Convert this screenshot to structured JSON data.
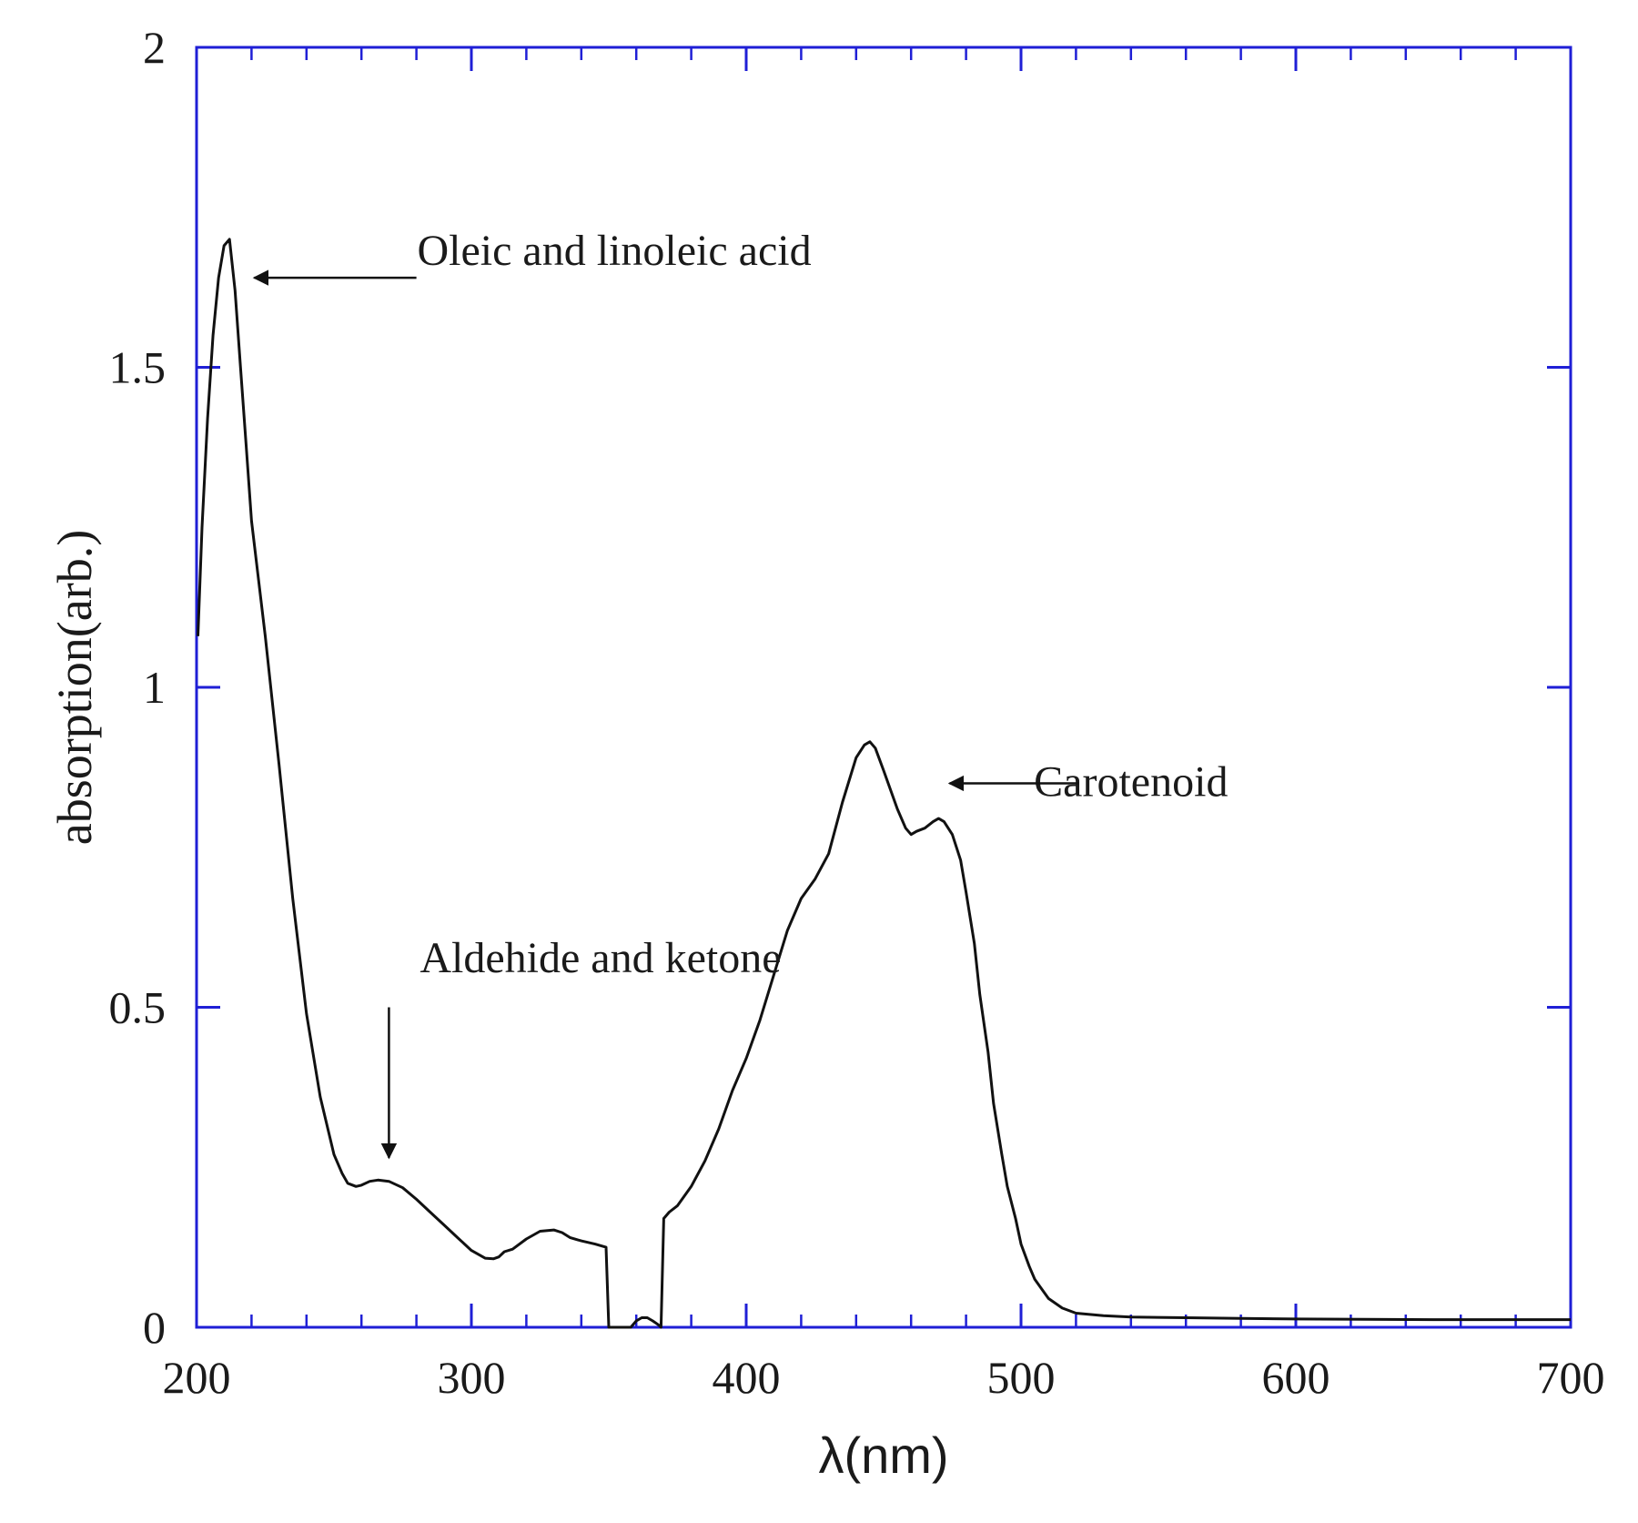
{
  "chart_data": {
    "type": "line",
    "xlabel": "λ(nm)",
    "ylabel": "absorption(arb.)",
    "xlim": [
      200,
      700
    ],
    "ylim": [
      0,
      2
    ],
    "x_ticks": [
      "200",
      "300",
      "400",
      "500",
      "600",
      "700"
    ],
    "y_ticks": [
      "0",
      "0.5",
      "1",
      "1.5",
      "2"
    ],
    "x_minor_step": 20,
    "frame_color": "#1f1fd6",
    "line_color": "#111111",
    "series": [
      {
        "x": [
          200.5,
          202,
          204,
          206,
          208,
          210,
          212,
          214,
          216,
          218,
          220,
          225,
          230,
          235,
          240,
          245,
          250,
          253,
          255,
          258,
          260,
          263,
          266,
          270,
          275,
          280,
          285,
          290,
          295,
          300,
          305,
          308,
          310,
          312,
          315,
          320,
          325,
          330,
          333,
          336,
          340,
          345,
          349,
          350,
          351,
          355,
          358,
          360,
          362,
          364,
          366,
          368,
          369,
          370,
          371,
          372,
          375,
          380,
          385,
          390,
          395,
          400,
          405,
          410,
          415,
          420,
          425,
          430,
          435,
          440,
          443,
          445,
          447,
          450,
          455,
          458,
          460,
          462,
          465,
          468,
          470,
          472,
          475,
          478,
          480,
          483,
          485,
          488,
          490,
          493,
          495,
          498,
          500,
          503,
          505,
          510,
          515,
          520,
          530,
          540,
          560,
          580,
          600,
          650,
          700
        ],
        "y": [
          1.08,
          1.25,
          1.42,
          1.55,
          1.64,
          1.69,
          1.7,
          1.62,
          1.5,
          1.38,
          1.26,
          1.08,
          0.88,
          0.67,
          0.49,
          0.36,
          0.27,
          0.24,
          0.225,
          0.22,
          0.222,
          0.228,
          0.23,
          0.228,
          0.218,
          0.2,
          0.18,
          0.16,
          0.14,
          0.12,
          0.108,
          0.107,
          0.11,
          0.118,
          0.122,
          0.138,
          0.15,
          0.152,
          0.148,
          0.14,
          0.135,
          0.13,
          0.125,
          0,
          0,
          0,
          0,
          0.01,
          0.015,
          0.015,
          0.01,
          0.004,
          0,
          0.17,
          0.175,
          0.18,
          0.19,
          0.22,
          0.26,
          0.31,
          0.37,
          0.42,
          0.48,
          0.55,
          0.62,
          0.67,
          0.7,
          0.74,
          0.82,
          0.89,
          0.91,
          0.915,
          0.905,
          0.87,
          0.81,
          0.78,
          0.77,
          0.775,
          0.78,
          0.79,
          0.795,
          0.79,
          0.77,
          0.73,
          0.68,
          0.6,
          0.52,
          0.43,
          0.35,
          0.27,
          0.22,
          0.17,
          0.13,
          0.095,
          0.075,
          0.045,
          0.03,
          0.022,
          0.018,
          0.016,
          0.015,
          0.014,
          0.013,
          0.012,
          0.012
        ]
      }
    ],
    "annotations": [
      {
        "text": "Oleic and linoleic acid",
        "x": 352,
        "y": 1.66,
        "arrow_from": [
          280,
          1.64
        ],
        "arrow_to": [
          221,
          1.64
        ]
      },
      {
        "text": "Carotenoid",
        "x": 540,
        "y": 0.83,
        "arrow_from": [
          521,
          0.85
        ],
        "arrow_to": [
          474,
          0.85
        ]
      },
      {
        "text": "Aldehide and ketone",
        "x": 347,
        "y": 0.555,
        "arrow_from": [
          270,
          0.5
        ],
        "arrow_to": [
          270,
          0.265
        ]
      }
    ]
  }
}
